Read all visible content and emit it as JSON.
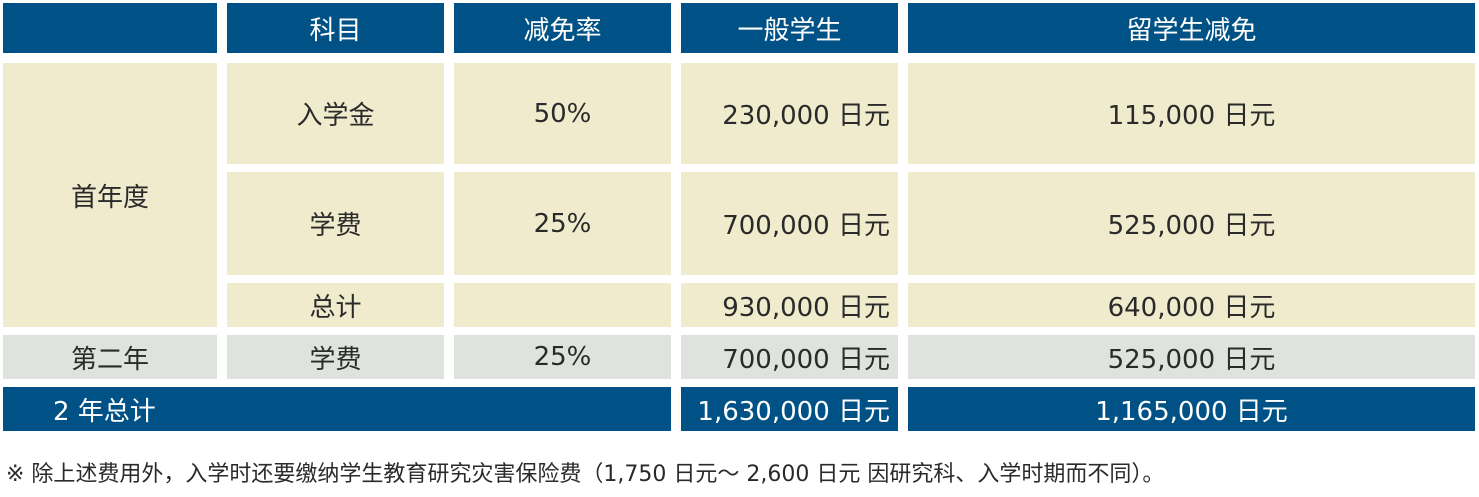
{
  "header": {
    "blank": "",
    "subject": "科目",
    "rate": "减免率",
    "general": "一般学生",
    "intl": "留学生减免"
  },
  "first_year": {
    "label": "首年度",
    "rows": [
      {
        "subject": "入学金",
        "rate": "50%",
        "general": "230,000 日元",
        "intl": "115,000 日元"
      },
      {
        "subject": "学费",
        "rate": "25%",
        "general": "700,000 日元",
        "intl": "525,000 日元"
      },
      {
        "subject": "总计",
        "rate": "",
        "general": "930,000 日元",
        "intl": "640,000 日元"
      }
    ]
  },
  "second_year": {
    "label": "第二年",
    "subject": "学费",
    "rate": "25%",
    "general": "700,000 日元",
    "intl": "525,000 日元"
  },
  "two_year_total": {
    "label": "2 年总计",
    "general": "1,630,000 日元",
    "intl": "1,165,000 日元"
  },
  "note": "※ 除上述费用外，入学时还要缴纳学生教育研究灾害保险费（1,750 日元～ 2,600 日元 因研究科、入学时期而不同）。"
}
